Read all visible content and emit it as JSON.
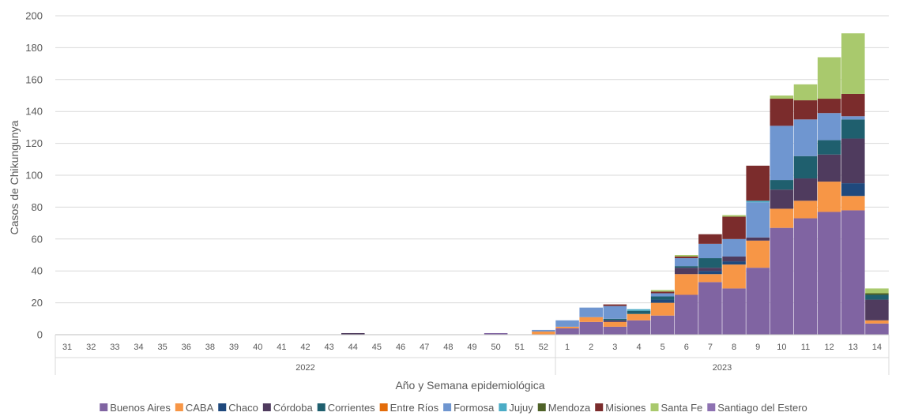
{
  "chart_data": {
    "type": "bar",
    "stacked": true,
    "xlabel": "Año y Semana epidemiológica",
    "ylabel": "Casos de Chikungunya",
    "ylim": [
      0,
      200
    ],
    "yticks": [
      0,
      20,
      40,
      60,
      80,
      100,
      120,
      140,
      160,
      180,
      200
    ],
    "grid": true,
    "legend_position": "bottom",
    "categories": [
      "31",
      "32",
      "33",
      "34",
      "35",
      "36",
      "38",
      "39",
      "40",
      "41",
      "42",
      "43",
      "44",
      "45",
      "46",
      "47",
      "48",
      "49",
      "50",
      "51",
      "52",
      "1",
      "2",
      "3",
      "4",
      "5",
      "6",
      "7",
      "8",
      "9",
      "10",
      "11",
      "12",
      "13",
      "14"
    ],
    "years": [
      {
        "label": "2022",
        "count": 21
      },
      {
        "label": "2023",
        "count": 14
      }
    ],
    "series": [
      {
        "name": "Buenos Aires",
        "color": "#8064A2",
        "values": [
          0,
          0,
          0,
          0,
          0,
          0,
          0,
          0,
          0,
          0,
          0,
          0,
          0,
          0,
          0,
          0,
          0,
          0,
          1,
          0,
          0,
          4,
          8,
          5,
          9,
          12,
          25,
          33,
          29,
          42,
          67,
          73,
          77,
          78,
          7
        ]
      },
      {
        "name": "CABA",
        "color": "#F79646",
        "values": [
          0,
          0,
          0,
          0,
          0,
          0,
          0,
          0,
          0,
          0,
          0,
          0,
          0,
          0,
          0,
          0,
          0,
          0,
          0,
          0,
          2,
          1,
          3,
          3,
          4,
          8,
          13,
          5,
          15,
          17,
          12,
          11,
          19,
          9,
          2
        ]
      },
      {
        "name": "Chaco",
        "color": "#1F497D",
        "values": [
          0,
          0,
          0,
          0,
          0,
          0,
          0,
          0,
          0,
          0,
          0,
          0,
          0,
          0,
          0,
          0,
          0,
          0,
          0,
          0,
          0,
          0,
          0,
          0,
          0,
          2,
          0,
          2,
          2,
          0,
          0,
          0,
          0,
          8,
          0
        ]
      },
      {
        "name": "Córdoba",
        "color": "#4F3B5E",
        "values": [
          0,
          0,
          0,
          0,
          0,
          0,
          0,
          0,
          0,
          0,
          0,
          0,
          1,
          0,
          0,
          0,
          0,
          0,
          0,
          0,
          0,
          0,
          0,
          1,
          0,
          0,
          4,
          2,
          3,
          2,
          12,
          14,
          17,
          28,
          13
        ]
      },
      {
        "name": "Corrientes",
        "color": "#1F5F6E",
        "values": [
          0,
          0,
          0,
          0,
          0,
          0,
          0,
          0,
          0,
          0,
          0,
          0,
          0,
          0,
          0,
          0,
          0,
          0,
          0,
          0,
          0,
          0,
          0,
          1,
          2,
          2,
          1,
          6,
          0,
          0,
          6,
          14,
          9,
          12,
          3
        ]
      },
      {
        "name": "Entre Ríos",
        "color": "#E36C0A",
        "values": [
          0,
          0,
          0,
          0,
          0,
          0,
          0,
          0,
          0,
          0,
          0,
          0,
          0,
          0,
          0,
          0,
          0,
          0,
          0,
          0,
          0,
          0,
          0,
          0,
          0,
          0,
          0,
          0,
          0,
          0,
          0,
          0,
          0,
          0,
          0
        ]
      },
      {
        "name": "Formosa",
        "color": "#6F96D0",
        "values": [
          0,
          0,
          0,
          0,
          0,
          0,
          0,
          0,
          0,
          0,
          0,
          0,
          0,
          0,
          0,
          0,
          0,
          0,
          0,
          0,
          1,
          4,
          6,
          8,
          0,
          2,
          5,
          9,
          11,
          22,
          34,
          23,
          17,
          2,
          0
        ]
      },
      {
        "name": "Jujuy",
        "color": "#4BACC6",
        "values": [
          0,
          0,
          0,
          0,
          0,
          0,
          0,
          0,
          0,
          0,
          0,
          0,
          0,
          0,
          0,
          0,
          0,
          0,
          0,
          0,
          0,
          0,
          0,
          0,
          1,
          0,
          0,
          0,
          0,
          1,
          0,
          0,
          0,
          0,
          0
        ]
      },
      {
        "name": "Mendoza",
        "color": "#4F6228",
        "values": [
          0,
          0,
          0,
          0,
          0,
          0,
          0,
          0,
          0,
          0,
          0,
          0,
          0,
          0,
          0,
          0,
          0,
          0,
          0,
          0,
          0,
          0,
          0,
          0,
          0,
          0,
          0,
          0,
          0,
          0,
          0,
          0,
          0,
          0,
          1
        ]
      },
      {
        "name": "Misiones",
        "color": "#7B2C2C",
        "values": [
          0,
          0,
          0,
          0,
          0,
          0,
          0,
          0,
          0,
          0,
          0,
          0,
          0,
          0,
          0,
          0,
          0,
          0,
          0,
          0,
          0,
          0,
          0,
          1,
          0,
          1,
          1,
          6,
          14,
          22,
          17,
          12,
          9,
          14,
          0
        ]
      },
      {
        "name": "Santa Fe",
        "color": "#A9C96D",
        "values": [
          0,
          0,
          0,
          0,
          0,
          0,
          0,
          0,
          0,
          0,
          0,
          0,
          0,
          0,
          0,
          0,
          0,
          0,
          0,
          0,
          0,
          0,
          0,
          0,
          0,
          1,
          1,
          0,
          1,
          0,
          2,
          10,
          26,
          38,
          3
        ]
      },
      {
        "name": "Santiago del Estero",
        "color": "#8E72B2",
        "values": [
          0,
          0,
          0,
          0,
          0,
          0,
          0,
          0,
          0,
          0,
          0,
          0,
          0,
          0,
          0,
          0,
          0,
          0,
          0,
          0,
          0,
          0,
          0,
          0,
          0,
          0,
          0,
          0,
          0,
          0,
          0,
          0,
          0,
          0,
          0
        ]
      }
    ]
  }
}
